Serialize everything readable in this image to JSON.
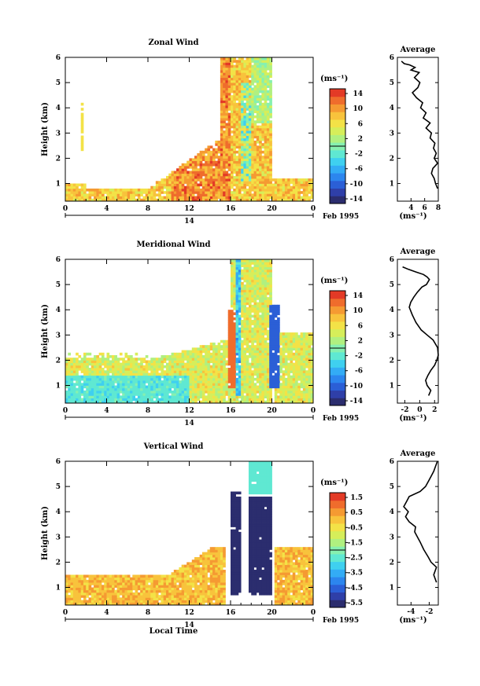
{
  "chart_data": [
    {
      "type": "heatmap",
      "title": "Zonal Wind",
      "ylabel": "Height (km)",
      "xlabel": "",
      "x_ticks": [
        "0",
        "4",
        "8",
        "12",
        "16",
        "20",
        "0"
      ],
      "y_ticks": [
        "1",
        "2",
        "3",
        "4",
        "5",
        "6"
      ],
      "xlim": [
        0,
        24
      ],
      "ylim": [
        0.3,
        6
      ],
      "date_label": "14",
      "date_suffix": "Feb 1995",
      "colorbar": {
        "unit": "(ms⁻¹)",
        "ticks": [
          "14",
          "10",
          "6",
          "2",
          "-2",
          "-6",
          "-10",
          "-14"
        ],
        "range": [
          -16,
          16
        ]
      },
      "profile": {
        "title": "Average",
        "xlabel": "(ms⁻¹)",
        "x_ticks": [
          "4",
          "6",
          "8"
        ],
        "xlim": [
          2,
          8
        ],
        "y_ticks": [
          "1",
          "2",
          "3",
          "4",
          "5",
          "6"
        ],
        "x": [
          7.9,
          7.6,
          7.4,
          7.0,
          7.2,
          7.9,
          7.4,
          7.7,
          7.3,
          7.5,
          6.8,
          7.0,
          6.2,
          6.8,
          5.8,
          6.2,
          5.4,
          5.7,
          4.8,
          4.2,
          5.0,
          5.3,
          4.5,
          5.2,
          4.0,
          4.6,
          3.8,
          3.0,
          2.8,
          2.6
        ],
        "y": [
          0.8,
          1.0,
          1.2,
          1.4,
          1.6,
          1.8,
          2.0,
          2.2,
          2.4,
          2.6,
          2.8,
          3.0,
          3.2,
          3.4,
          3.6,
          3.8,
          4.0,
          4.2,
          4.4,
          4.6,
          4.8,
          5.0,
          5.2,
          5.4,
          5.5,
          5.6,
          5.7,
          5.75,
          5.8,
          5.85
        ]
      }
    },
    {
      "type": "heatmap",
      "title": "Meridional Wind",
      "ylabel": "Height (km)",
      "xlabel": "",
      "x_ticks": [
        "0",
        "4",
        "8",
        "12",
        "16",
        "20",
        "0"
      ],
      "y_ticks": [
        "1",
        "2",
        "3",
        "4",
        "5",
        "6"
      ],
      "xlim": [
        0,
        24
      ],
      "ylim": [
        0.3,
        6
      ],
      "date_label": "14",
      "date_suffix": "Feb 1995",
      "colorbar": {
        "unit": "(ms⁻¹)",
        "ticks": [
          "14",
          "10",
          "6",
          "2",
          "-2",
          "-6",
          "-10",
          "-14"
        ],
        "range": [
          -16,
          16
        ]
      },
      "profile": {
        "title": "Average",
        "xlabel": "(ms⁻¹)",
        "x_ticks": [
          "-2",
          "0",
          "2"
        ],
        "xlim": [
          -3,
          2.5
        ],
        "y_ticks": [
          "1",
          "2",
          "3",
          "4",
          "5",
          "6"
        ],
        "x": [
          1.2,
          1.5,
          1.0,
          0.8,
          1.1,
          1.5,
          2.0,
          2.3,
          2.5,
          2.4,
          1.8,
          1.0,
          0.2,
          -0.5,
          -1.0,
          -1.4,
          -1.2,
          -0.8,
          -0.3,
          0.3,
          0.9,
          1.3,
          1.0,
          0.5,
          -0.5,
          -1.5,
          -2.3
        ],
        "y": [
          0.6,
          0.8,
          1.0,
          1.2,
          1.4,
          1.6,
          1.8,
          2.0,
          2.2,
          2.5,
          2.8,
          3.0,
          3.2,
          3.5,
          3.8,
          4.1,
          4.3,
          4.5,
          4.7,
          4.9,
          5.0,
          5.2,
          5.3,
          5.4,
          5.5,
          5.6,
          5.7
        ]
      }
    },
    {
      "type": "heatmap",
      "title": "Vertical Wind",
      "ylabel": "Height (km)",
      "xlabel": "Local Time",
      "x_ticks": [
        "0",
        "4",
        "8",
        "12",
        "16",
        "20",
        "0"
      ],
      "y_ticks": [
        "1",
        "2",
        "3",
        "4",
        "5",
        "6"
      ],
      "xlim": [
        0,
        24
      ],
      "ylim": [
        0.3,
        6
      ],
      "date_label": "14",
      "date_suffix": "Feb 1995",
      "colorbar": {
        "unit": "(ms⁻¹)",
        "ticks": [
          "1.5",
          "0.5",
          "-0.5",
          "-1.5",
          "-2.5",
          "-3.5",
          "-4.5",
          "-5.5"
        ],
        "range": [
          -6,
          2
        ]
      },
      "profile": {
        "title": "Average",
        "xlabel": "(ms⁻¹)",
        "x_ticks": [
          "-4",
          "-2"
        ],
        "xlim": [
          -5.5,
          -1
        ],
        "y_ticks": [
          "1",
          "2",
          "3",
          "4",
          "5",
          "6"
        ],
        "x": [
          -1.2,
          -1.5,
          -1.2,
          -1.8,
          -2.1,
          -2.6,
          -3.0,
          -3.3,
          -3.6,
          -3.5,
          -4.2,
          -4.6,
          -4.3,
          -4.8,
          -4.5,
          -4.2,
          -3.0,
          -2.4,
          -2.1,
          -1.8,
          -1.5,
          -1.3,
          -1.2,
          -1.1
        ],
        "y": [
          1.2,
          1.5,
          1.8,
          2.0,
          2.2,
          2.5,
          2.8,
          3.0,
          3.2,
          3.4,
          3.6,
          3.8,
          4.0,
          4.2,
          4.4,
          4.6,
          4.8,
          5.0,
          5.2,
          5.4,
          5.6,
          5.8,
          5.9,
          6.0
        ]
      }
    }
  ]
}
